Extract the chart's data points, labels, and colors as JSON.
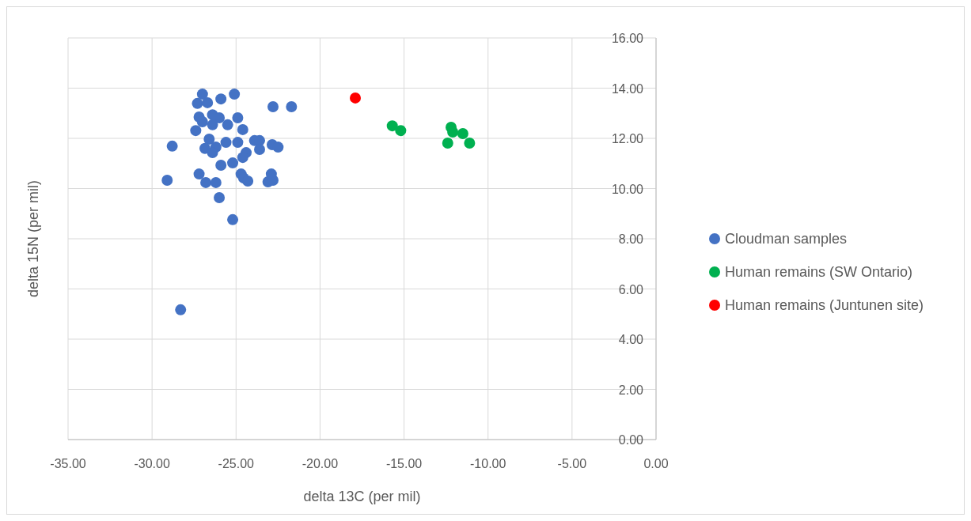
{
  "chart_data": {
    "type": "scatter",
    "xlabel": "delta 13C (per mil)",
    "ylabel": "delta 15N (per mil)",
    "xlim": [
      -35,
      0
    ],
    "xticks": [
      {
        "value": -35,
        "label": "-35.00"
      },
      {
        "value": -30,
        "label": "-30.00"
      },
      {
        "value": -25,
        "label": "-25.00"
      },
      {
        "value": -20,
        "label": "-20.00"
      },
      {
        "value": -15,
        "label": "-15.00"
      },
      {
        "value": -10,
        "label": "-10.00"
      },
      {
        "value": -5,
        "label": "-5.00"
      },
      {
        "value": 0,
        "label": "0.00"
      }
    ],
    "ylim": [
      0,
      16
    ],
    "yticks": [
      {
        "value": 0,
        "label": "0.00"
      },
      {
        "value": 2,
        "label": "2.00"
      },
      {
        "value": 4,
        "label": "4.00"
      },
      {
        "value": 6,
        "label": "6.00"
      },
      {
        "value": 8,
        "label": "8.00"
      },
      {
        "value": 10,
        "label": "10.00"
      },
      {
        "value": 12,
        "label": "12.00"
      },
      {
        "value": 14,
        "label": "14.00"
      },
      {
        "value": 16,
        "label": "16.00"
      }
    ],
    "grid": true,
    "legend": "right",
    "marker": "circle",
    "series": [
      {
        "name": "Cloudman samples",
        "color": "#4472c4",
        "x": [
          -27.0,
          -25.1,
          -25.9,
          -27.3,
          -26.7,
          -22.8,
          -21.7,
          -27.2,
          -26.4,
          -26.0,
          -24.9,
          -27.0,
          -26.4,
          -25.5,
          -27.4,
          -24.6,
          -26.6,
          -25.6,
          -24.9,
          -23.9,
          -23.6,
          -28.8,
          -26.85,
          -26.2,
          -26.4,
          -23.6,
          -22.85,
          -22.5,
          -24.4,
          -24.6,
          -25.9,
          -25.2,
          -27.2,
          -24.7,
          -24.55,
          -24.3,
          -29.1,
          -26.8,
          -26.2,
          -23.1,
          -22.8,
          -22.9,
          -26.0,
          -25.2,
          -28.3
        ],
        "values": [
          13.76,
          13.76,
          13.57,
          13.39,
          13.42,
          13.26,
          13.26,
          12.85,
          12.94,
          12.82,
          12.82,
          12.66,
          12.54,
          12.54,
          12.31,
          12.35,
          11.97,
          11.84,
          11.84,
          11.91,
          11.91,
          11.69,
          11.6,
          11.65,
          11.43,
          11.56,
          11.75,
          11.65,
          11.43,
          11.24,
          10.93,
          11.02,
          10.58,
          10.58,
          10.42,
          10.3,
          10.33,
          10.24,
          10.24,
          10.27,
          10.33,
          10.58,
          9.64,
          8.76,
          5.17
        ]
      },
      {
        "name": "Human remains (SW Ontario)",
        "color": "#00b050",
        "x": [
          -15.7,
          -15.2,
          -12.2,
          -12.1,
          -11.5,
          -12.4,
          -11.1
        ],
        "values": [
          12.5,
          12.31,
          12.44,
          12.25,
          12.19,
          11.81,
          11.81
        ]
      },
      {
        "name": "Human remains (Juntunen site)",
        "color": "#ff0000",
        "x": [
          -17.9
        ],
        "values": [
          13.61
        ]
      }
    ]
  }
}
